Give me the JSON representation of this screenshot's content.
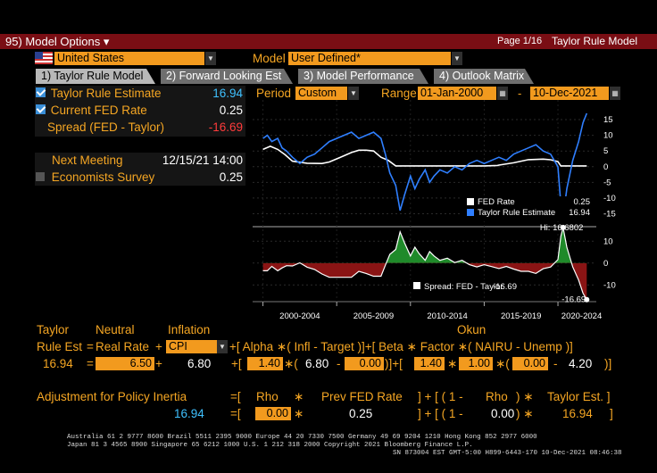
{
  "topbar": {
    "menu": "95) Model Options ▾",
    "page": "Page 1/16",
    "title": "Taylor Rule Model"
  },
  "country": {
    "value": "United States",
    "flag": "us-flag"
  },
  "model": {
    "label": "Model",
    "value": "User Defined*"
  },
  "tabs": [
    {
      "label": "1) Taylor Rule Model",
      "active": true
    },
    {
      "label": "2) Forward Looking Est",
      "active": false
    },
    {
      "label": "3) Model Performance",
      "active": false
    },
    {
      "label": "4) Outlook Matrix",
      "active": false
    }
  ],
  "metrics": {
    "taylor_label": "Taylor Rule Estimate",
    "taylor_value": "16.94",
    "fed_label": "Current FED Rate",
    "fed_value": "0.25",
    "spread_label": "Spread (FED - Taylor)",
    "spread_value": "-16.69",
    "next_meeting_label": "Next Meeting",
    "next_meeting_value": "12/15/21 14:00",
    "economists_label": "Economists Survey",
    "economists_value": "0.25"
  },
  "period": {
    "label": "Period",
    "value": "Custom",
    "range_label": "Range",
    "start": "01-Jan-2000",
    "dash": "-",
    "end": "10-Dec-2021"
  },
  "chart_data": {
    "type": "line",
    "x_ticks": [
      "2000-2004",
      "2005-2009",
      "2010-2014",
      "2015-2019",
      "2020-2024"
    ],
    "top_panel": {
      "yticks": [
        "15",
        "10",
        "5",
        "0",
        "-5",
        "-10",
        "-15"
      ],
      "ylim": [
        -18,
        19
      ],
      "legend": [
        {
          "name": "FED Rate",
          "value": "0.25",
          "color": "#ffffff"
        },
        {
          "name": "Taylor Rule Estimate",
          "value": "16.94",
          "color": "#2f7fff"
        }
      ],
      "series": [
        {
          "name": "FED Rate",
          "color": "#ffffff",
          "x": [
            2000,
            2000.5,
            2001,
            2001.5,
            2002,
            2003,
            2004,
            2004.5,
            2005,
            2005.5,
            2006,
            2006.5,
            2007,
            2007.5,
            2008,
            2008.5,
            2009,
            2012,
            2015,
            2015.9,
            2016,
            2017,
            2018,
            2019,
            2019.5,
            2020,
            2020.2,
            2021,
            2021.95
          ],
          "y": [
            5.5,
            6.5,
            5.5,
            3.8,
            1.75,
            1.1,
            1.0,
            1.5,
            2.5,
            3.5,
            4.5,
            5.25,
            5.25,
            5.0,
            3.0,
            2.0,
            0.25,
            0.25,
            0.25,
            0.4,
            0.5,
            1.25,
            2.25,
            2.4,
            2.2,
            1.6,
            0.25,
            0.25,
            0.25
          ]
        },
        {
          "name": "Taylor Rule Estimate",
          "color": "#2f7fff",
          "x": [
            2000,
            2000.3,
            2000.6,
            2001,
            2001.3,
            2001.6,
            2002,
            2002.5,
            2003,
            2003.5,
            2004,
            2004.5,
            2005,
            2005.5,
            2006,
            2006.5,
            2007,
            2007.5,
            2008,
            2008.3,
            2008.6,
            2009,
            2009.3,
            2009.6,
            2010,
            2010.3,
            2010.6,
            2011,
            2011.3,
            2011.6,
            2012,
            2012.5,
            2013,
            2013.5,
            2014,
            2014.5,
            2015,
            2015.5,
            2016,
            2016.5,
            2017,
            2017.5,
            2018,
            2018.5,
            2019,
            2019.5,
            2020,
            2020.2,
            2020.35,
            2020.6,
            2021,
            2021.4,
            2021.7,
            2021.95
          ],
          "y": [
            9,
            10,
            8,
            9,
            6,
            5,
            3,
            1,
            3,
            4,
            6,
            8,
            9,
            10,
            11,
            9,
            10,
            11,
            9,
            4,
            -2,
            -6,
            -14,
            -9,
            -3,
            -7,
            -4,
            -1,
            -5,
            -3,
            -1,
            -2,
            0,
            -1,
            1,
            2,
            1,
            2,
            3,
            2,
            4,
            5,
            6,
            7,
            5,
            4,
            0,
            -12,
            -16,
            -7,
            2,
            8,
            14,
            17
          ]
        }
      ]
    },
    "bottom_panel": {
      "yticks": [
        "10",
        "0",
        "-10"
      ],
      "ylim": [
        -16,
        15
      ],
      "hi_label": "Hi: 16.6802",
      "legend": {
        "name": "Spread: FED - Taylor",
        "value": "-16.69",
        "color": "#ffffff"
      },
      "last_label": "-16.69",
      "series": [
        {
          "name": "Spread: FED - Taylor",
          "x": [
            2000,
            2000.3,
            2000.6,
            2001,
            2001.3,
            2001.6,
            2002,
            2002.5,
            2003,
            2003.5,
            2004,
            2004.5,
            2005,
            2005.5,
            2006,
            2006.5,
            2007,
            2007.5,
            2008,
            2008.3,
            2008.6,
            2009,
            2009.3,
            2009.6,
            2010,
            2010.3,
            2010.6,
            2011,
            2011.3,
            2011.6,
            2012,
            2012.5,
            2013,
            2013.5,
            2014,
            2014.5,
            2015,
            2015.5,
            2016,
            2016.5,
            2017,
            2017.5,
            2018,
            2018.5,
            2019,
            2019.5,
            2020,
            2020.2,
            2020.35,
            2020.6,
            2021,
            2021.4,
            2021.7,
            2021.95
          ],
          "y": [
            -3.5,
            -3.5,
            -1.5,
            -3.5,
            -2.2,
            -1.2,
            -1.3,
            0.1,
            -1.9,
            -2.9,
            -5,
            -6.5,
            -6.5,
            -6.5,
            -6.5,
            -3.75,
            -4.75,
            -6,
            -6,
            -1,
            4,
            6.25,
            14.25,
            9.25,
            3.25,
            7.25,
            4.25,
            1.25,
            5.25,
            3.25,
            1.25,
            2.25,
            0.25,
            1.25,
            -0.75,
            -1.75,
            -0.75,
            -1.6,
            -2.5,
            -1.5,
            -2.75,
            -3.75,
            -3.75,
            -4.75,
            -2.6,
            -1.8,
            1.6,
            12.25,
            16.25,
            7.25,
            -1.75,
            -7.75,
            -13.75,
            -16.69
          ]
        }
      ]
    }
  },
  "formula": {
    "h_taylor": "Taylor",
    "h_neutral": "Neutral",
    "h_inflation": "Inflation",
    "h_okun": "Okun",
    "rule_est": "Rule Est",
    "eq": "=",
    "real_rate": "Real Rate",
    "plus": "+",
    "cpi": "CPI",
    "bracket_alpha": "+[ Alpha ∗( Infl  - Target )]+[ Beta ∗ Factor ∗( NAIRU - Unemp )]",
    "val_est": "16.94",
    "val_real": "6.50",
    "val_cpi": "6.80",
    "val_alpha": "1.40",
    "val_infl": "6.80",
    "val_target": "0.00",
    "val_beta": "1.40",
    "val_factor": "1.00",
    "val_nairu": "0.00",
    "val_unemp": "4.20"
  },
  "inertia": {
    "label": "Adjustment for Policy Inertia",
    "eq_open": "=[",
    "rho": "Rho",
    "star": "∗",
    "prev": "Prev FED Rate",
    "close_plus": "] + [ ( 1 -",
    "rho2": "Rho",
    "close2": ") ∗",
    "taylor_est": "Taylor Est. ]",
    "val_result": "16.94",
    "val_rho": "0.00",
    "val_prev": "0.25",
    "val_one_minus": "0.00",
    "val_taylor": "16.94"
  },
  "footer": {
    "line1": "Australia 61 2 9777 8600 Brazil 5511 2395 9000 Europe 44 20 7330 7500 Germany 49 69 9204 1210 Hong Kong 852 2977 6000",
    "line2": "Japan 81 3 4565 8900      Singapore 65 6212 1000      U.S. 1 212 318 2000          Copyright 2021 Bloomberg Finance L.P.",
    "line3": "SN 873004 EST  GMT-5:00 H899-6443-170 10-Dec-2021 08:46:38"
  }
}
